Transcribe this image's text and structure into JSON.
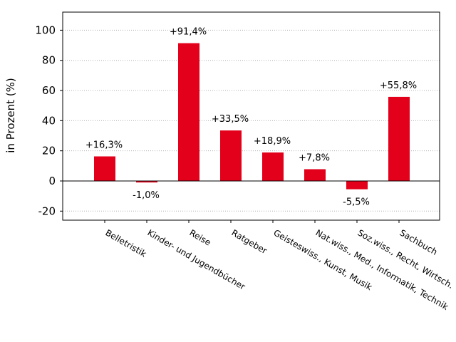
{
  "chart_data": {
    "type": "bar",
    "ylabel": "in Prozent (%)",
    "ylim": [
      -26,
      112
    ],
    "yticks": [
      -20,
      0,
      20,
      40,
      60,
      80,
      100
    ],
    "ytick_labels": [
      "-20",
      "0",
      "20",
      "40",
      "60",
      "80",
      "100"
    ],
    "grid": "horizontal dotted",
    "bar_color": "#e2001a",
    "categories": [
      "Belletristik",
      "Kinder- und Jugendbücher",
      "Reise",
      "Ratgeber",
      "Geisteswiss., Kunst, Musik",
      "Nat.wiss., Med., Informatik, Technik",
      "Soz.wiss., Recht, Wirtsch.",
      "Sachbuch"
    ],
    "values": [
      16.3,
      -1.0,
      91.4,
      33.5,
      18.9,
      7.8,
      -5.5,
      55.8
    ],
    "data_labels": [
      "+16,3%",
      "-1,0%",
      "+91,4%",
      "+33,5%",
      "+18,9%",
      "+7,8%",
      "-5,5%",
      "+55,8%"
    ]
  }
}
